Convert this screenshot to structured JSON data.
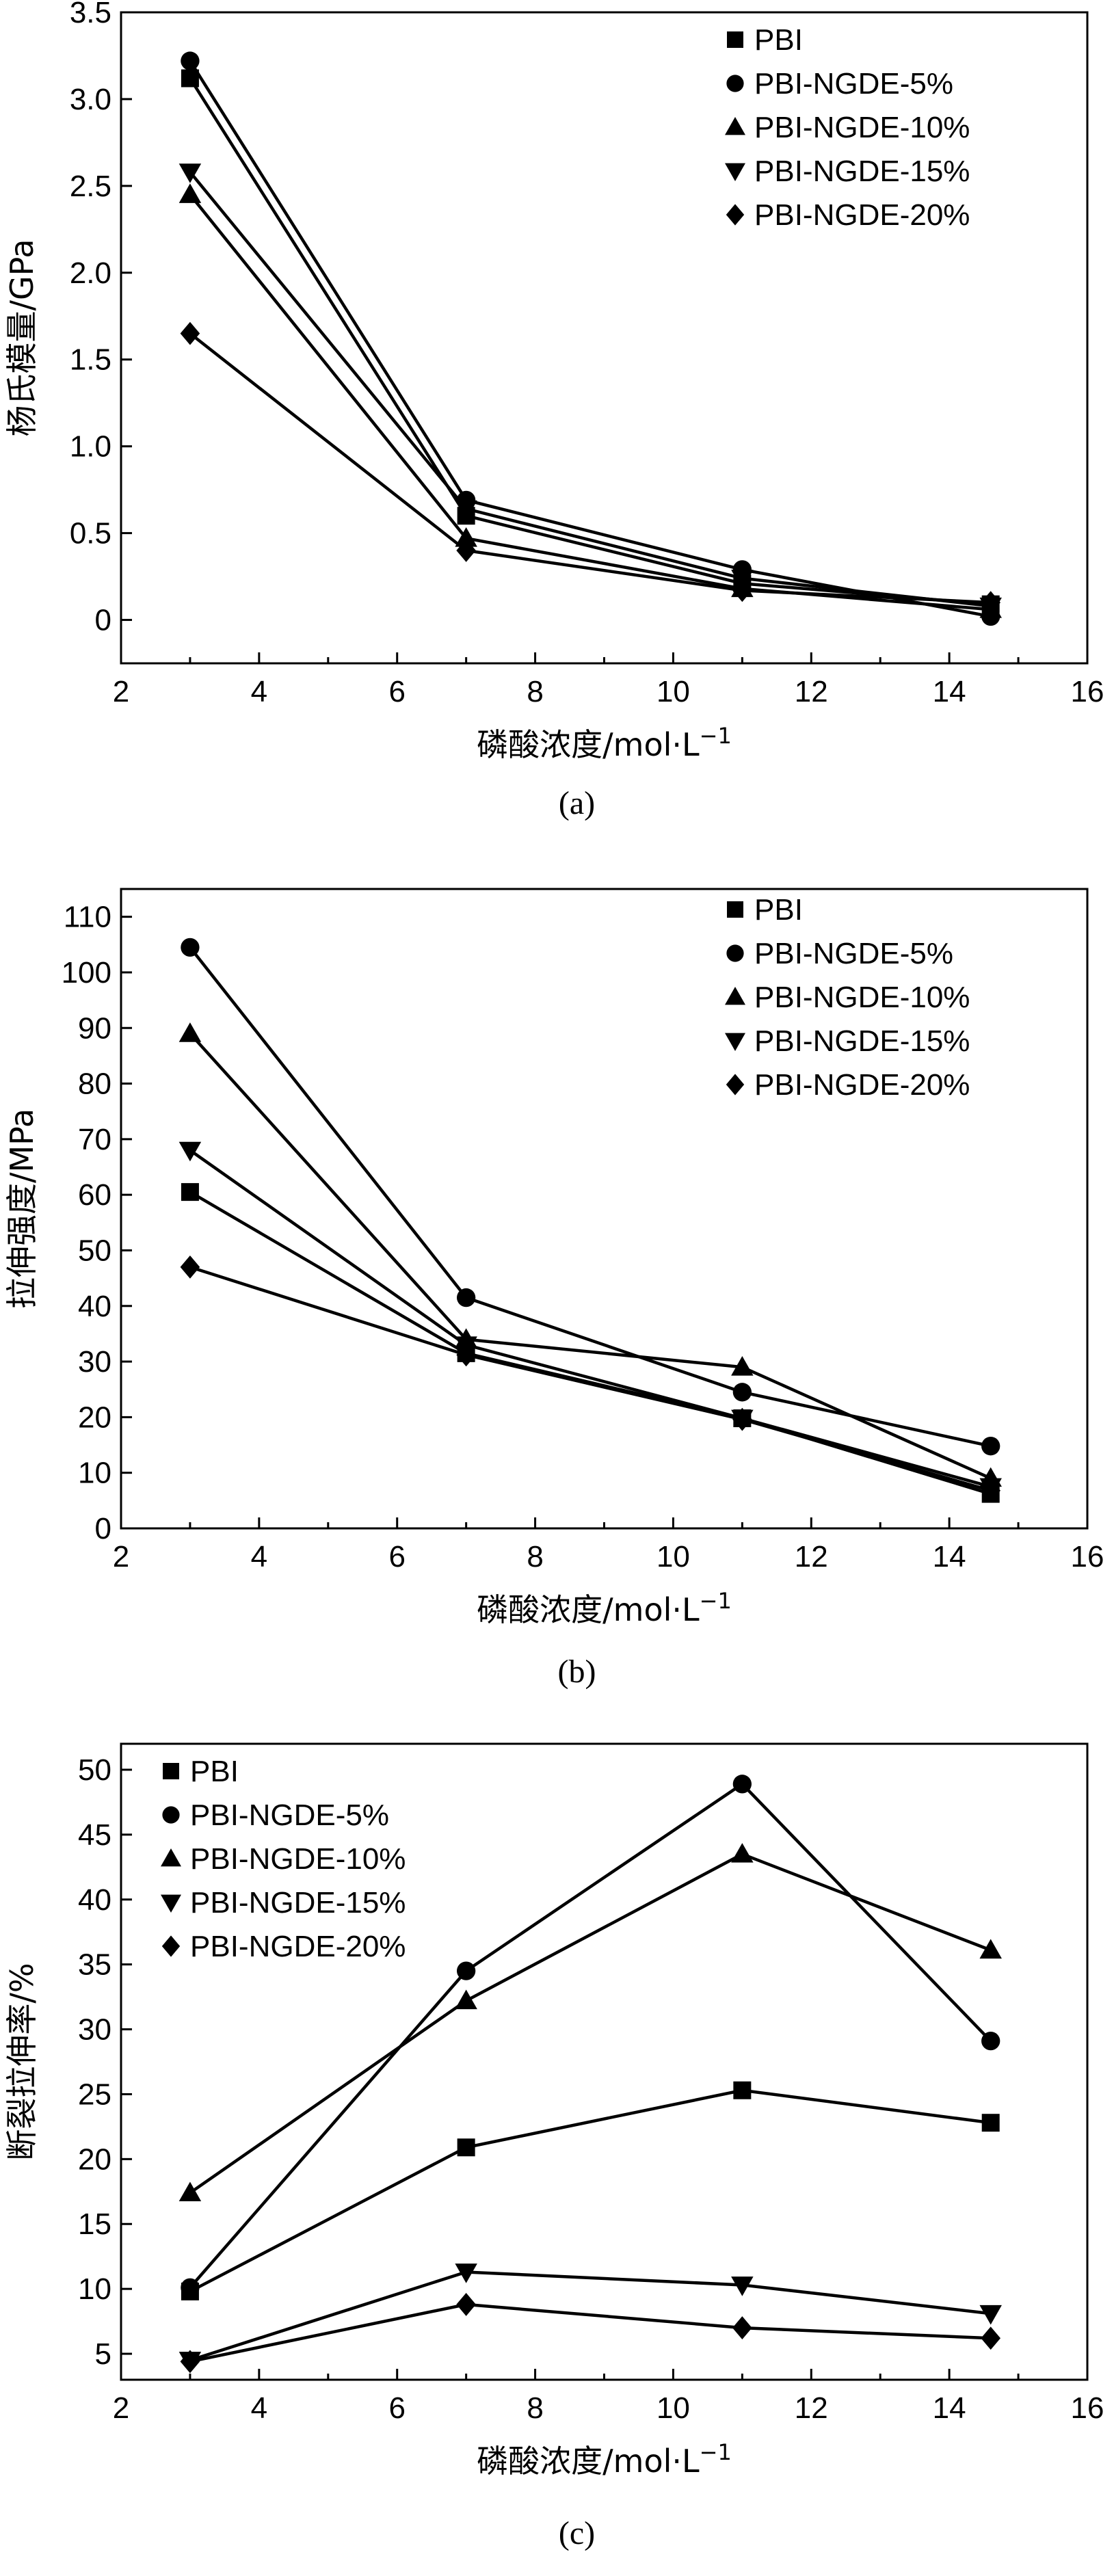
{
  "chart_data": [
    {
      "type": "line",
      "panel_label": "(a)",
      "ylabel": "杨氏模量/GPa",
      "xlabel": "磷酸浓度/mol·L",
      "xlabel_sup": "−1",
      "xlim": [
        2,
        16
      ],
      "ylim": [
        -0.25,
        3.5
      ],
      "xticks": [
        2,
        4,
        6,
        8,
        10,
        12,
        14,
        16
      ],
      "yticks": [
        0,
        0.5,
        1.0,
        1.5,
        2.0,
        2.5,
        3.0,
        3.5
      ],
      "ytick_labels": [
        "0",
        "0.5",
        "1.0",
        "1.5",
        "2.0",
        "2.5",
        "3.0",
        "3.5"
      ],
      "legend_position": "top-right",
      "x": [
        3,
        7,
        11,
        14.6
      ],
      "series": [
        {
          "name": "PBI",
          "marker": "square",
          "values": [
            3.12,
            0.6,
            0.21,
            0.09
          ]
        },
        {
          "name": "PBI-NGDE-5%",
          "marker": "circle",
          "values": [
            3.22,
            0.69,
            0.29,
            0.02
          ]
        },
        {
          "name": "PBI-NGDE-10%",
          "marker": "triangle-up",
          "values": [
            2.45,
            0.47,
            0.18,
            0.06
          ]
        },
        {
          "name": "PBI-NGDE-15%",
          "marker": "triangle-down",
          "values": [
            2.58,
            0.64,
            0.24,
            0.08
          ]
        },
        {
          "name": "PBI-NGDE-20%",
          "marker": "diamond",
          "values": [
            1.65,
            0.4,
            0.17,
            0.1
          ]
        }
      ]
    },
    {
      "type": "line",
      "panel_label": "(b)",
      "ylabel": "拉伸强度/MPa",
      "xlabel": "磷酸浓度/mol·L",
      "xlabel_sup": "−1",
      "xlim": [
        2,
        16
      ],
      "ylim": [
        0,
        115
      ],
      "xticks": [
        2,
        4,
        6,
        8,
        10,
        12,
        14,
        16
      ],
      "yticks": [
        0,
        10,
        20,
        30,
        40,
        50,
        60,
        70,
        80,
        90,
        100,
        110
      ],
      "ytick_labels": [
        "0",
        "10",
        "20",
        "30",
        "40",
        "50",
        "60",
        "70",
        "80",
        "90",
        "100",
        "110"
      ],
      "legend_position": "top-right",
      "x": [
        3,
        7,
        11,
        14.6
      ],
      "series": [
        {
          "name": "PBI",
          "marker": "square",
          "values": [
            60.5,
            31.5,
            19.8,
            6.2
          ]
        },
        {
          "name": "PBI-NGDE-5%",
          "marker": "circle",
          "values": [
            104.5,
            41.5,
            24.5,
            14.8
          ]
        },
        {
          "name": "PBI-NGDE-10%",
          "marker": "triangle-up",
          "values": [
            89,
            34,
            29,
            9
          ]
        },
        {
          "name": "PBI-NGDE-15%",
          "marker": "triangle-down",
          "values": [
            68,
            33,
            19.8,
            7.5
          ]
        },
        {
          "name": "PBI-NGDE-20%",
          "marker": "diamond",
          "values": [
            47,
            31.2,
            19.6,
            6.8
          ]
        }
      ]
    },
    {
      "type": "line",
      "panel_label": "(c)",
      "ylabel": "断裂拉伸率/%",
      "xlabel": "磷酸浓度/mol·L",
      "xlabel_sup": "−1",
      "xlim": [
        2,
        16
      ],
      "ylim": [
        3,
        52
      ],
      "xticks": [
        2,
        4,
        6,
        8,
        10,
        12,
        14,
        16
      ],
      "yticks": [
        5,
        10,
        15,
        20,
        25,
        30,
        35,
        40,
        45,
        50
      ],
      "ytick_labels": [
        "5",
        "10",
        "15",
        "20",
        "25",
        "30",
        "35",
        "40",
        "45",
        "50"
      ],
      "legend_position": "top-left",
      "x": [
        3,
        7,
        11,
        14.6
      ],
      "series": [
        {
          "name": "PBI",
          "marker": "square",
          "values": [
            9.8,
            20.9,
            25.3,
            22.8
          ]
        },
        {
          "name": "PBI-NGDE-5%",
          "marker": "circle",
          "values": [
            10.1,
            34.5,
            48.9,
            29.1
          ]
        },
        {
          "name": "PBI-NGDE-10%",
          "marker": "triangle-up",
          "values": [
            17.4,
            32.2,
            43.5,
            36.1
          ]
        },
        {
          "name": "PBI-NGDE-15%",
          "marker": "triangle-down",
          "values": [
            4.5,
            11.3,
            10.3,
            8.1
          ]
        },
        {
          "name": "PBI-NGDE-20%",
          "marker": "diamond",
          "values": [
            4.4,
            8.8,
            7.0,
            6.2
          ]
        }
      ]
    }
  ]
}
